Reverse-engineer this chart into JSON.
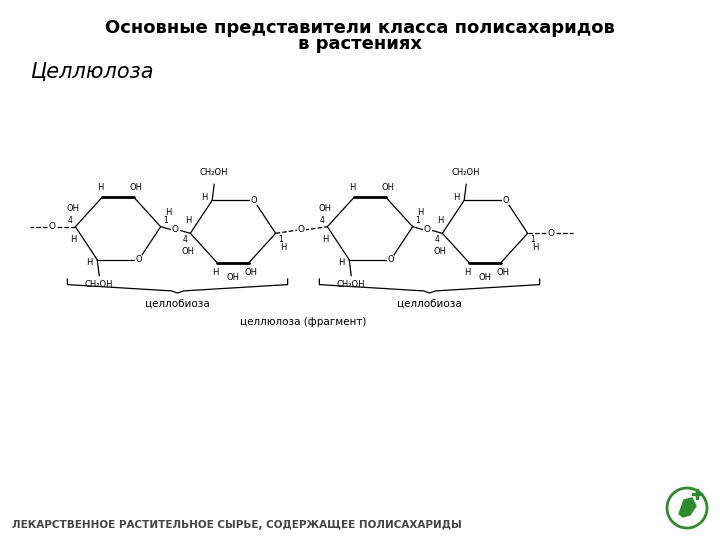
{
  "title_line1": "Основные представители класса полисахаридов",
  "title_line2": "в растениях",
  "subtitle": "Целлюлоза",
  "label_cellubiose1": "целлобиоза",
  "label_cellubiose2": "целлобиоза",
  "label_cellulose": "целлюлоза (фрагмент)",
  "footer": "ЛЕКАРСТВЕННОЕ РАСТИТЕЛЬНОЕ СЫРЬЕ, СОДЕРЖАЩЕЕ ПОЛИСАХАРИДЫ",
  "bg_color": "#ffffff",
  "text_color": "#000000",
  "footer_color": "#444444",
  "title_fontsize": 13,
  "subtitle_fontsize": 15,
  "footer_fontsize": 7.5,
  "line_color": "#000000",
  "logo_color": "#2e8b2e"
}
